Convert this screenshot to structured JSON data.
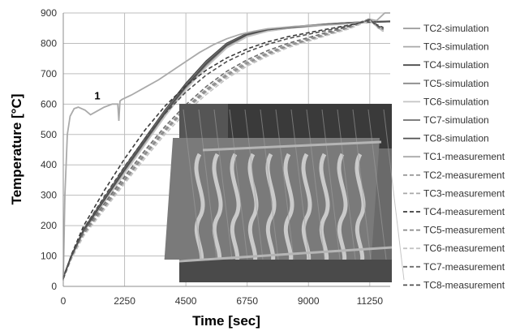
{
  "chart_data": {
    "type": "line",
    "title": "",
    "xlabel": "Time [sec]",
    "ylabel": "Temperature [°C]",
    "xlim": [
      0,
      12000
    ],
    "ylim": [
      0,
      900
    ],
    "xticks": [
      0,
      2250,
      4500,
      6750,
      9000,
      11250
    ],
    "yticks": [
      0,
      100,
      200,
      300,
      400,
      500,
      600,
      700,
      800,
      900
    ],
    "grid": true,
    "legend_position": "right",
    "annotations": [
      {
        "text": "1",
        "x": 1250,
        "y": 615
      }
    ],
    "series": [
      {
        "name": "TC2-simulation",
        "style": "solid",
        "color": "#9a9a9a",
        "x": [
          0,
          300,
          750,
          1500,
          2250,
          3000,
          3750,
          4500,
          5250,
          6000,
          6750,
          7500,
          8250,
          9000,
          9750,
          10500,
          11250,
          12000
        ],
        "y": [
          30,
          100,
          185,
          285,
          385,
          480,
          575,
          660,
          735,
          795,
          830,
          845,
          852,
          858,
          864,
          868,
          870,
          872
        ]
      },
      {
        "name": "TC3-simulation",
        "style": "solid",
        "color": "#a8a8a8",
        "x": [
          0,
          300,
          750,
          1500,
          2250,
          3000,
          3750,
          4500,
          5250,
          6000,
          6750,
          7500,
          8250,
          9000,
          9750,
          10500,
          11250,
          12000
        ],
        "y": [
          30,
          98,
          180,
          278,
          375,
          470,
          565,
          650,
          725,
          788,
          825,
          842,
          850,
          856,
          862,
          867,
          870,
          872
        ]
      },
      {
        "name": "TC4-simulation",
        "style": "solid",
        "color": "#4a4a4a",
        "x": [
          0,
          300,
          750,
          1500,
          2250,
          3000,
          3750,
          4500,
          5250,
          6000,
          6750,
          7500,
          8250,
          9000,
          9750,
          10500,
          11250,
          12000
        ],
        "y": [
          30,
          102,
          188,
          290,
          392,
          488,
          582,
          668,
          742,
          800,
          833,
          847,
          853,
          859,
          864,
          868,
          871,
          873
        ]
      },
      {
        "name": "TC5-simulation",
        "style": "solid",
        "color": "#8a8a8a",
        "x": [
          0,
          300,
          750,
          1500,
          2250,
          3000,
          3750,
          4500,
          5250,
          6000,
          6750,
          7500,
          8250,
          9000,
          9750,
          10500,
          11250,
          12000
        ],
        "y": [
          30,
          99,
          183,
          282,
          380,
          475,
          570,
          655,
          730,
          792,
          828,
          844,
          851,
          857,
          863,
          867,
          870,
          872
        ]
      },
      {
        "name": "TC6-simulation",
        "style": "solid",
        "color": "#c4c4c4",
        "x": [
          0,
          300,
          750,
          1500,
          2250,
          3000,
          3750,
          4500,
          5250,
          6000,
          6750,
          7500,
          8250,
          9000,
          9750,
          10500,
          11250,
          12000
        ],
        "y": [
          30,
          97,
          178,
          275,
          372,
          467,
          562,
          647,
          722,
          785,
          822,
          840,
          849,
          855,
          861,
          866,
          869,
          871
        ]
      },
      {
        "name": "TC7-simulation",
        "style": "solid",
        "color": "#6e6e6e",
        "x": [
          0,
          300,
          750,
          1500,
          2250,
          3000,
          3750,
          4500,
          5250,
          6000,
          6750,
          7500,
          8250,
          9000,
          9750,
          10500,
          11250,
          12000
        ],
        "y": [
          30,
          101,
          186,
          287,
          388,
          484,
          578,
          663,
          738,
          797,
          831,
          846,
          852,
          858,
          863,
          868,
          870,
          872
        ]
      },
      {
        "name": "TC8-simulation",
        "style": "solid",
        "color": "#505050",
        "x": [
          0,
          300,
          750,
          1500,
          2250,
          3000,
          3750,
          4500,
          5250,
          6000,
          6750,
          7500,
          8250,
          9000,
          9750,
          10500,
          11250,
          12000
        ],
        "y": [
          30,
          100,
          184,
          284,
          384,
          479,
          573,
          658,
          733,
          794,
          829,
          845,
          852,
          857,
          863,
          867,
          870,
          872
        ]
      },
      {
        "name": "TC1-measurement",
        "style": "solid",
        "color": "#aaaaaa",
        "x": [
          0,
          60,
          150,
          250,
          400,
          550,
          800,
          1000,
          1200,
          1500,
          1800,
          2000,
          2040,
          2080,
          2150,
          2500,
          3000,
          3500,
          4000,
          4500,
          5000,
          5500,
          6000,
          6500,
          7000,
          7500,
          8000,
          8500,
          9000,
          9500,
          10000,
          10500,
          11000,
          11200,
          11500,
          11800,
          12000
        ],
        "y": [
          20,
          300,
          500,
          560,
          585,
          590,
          580,
          565,
          575,
          590,
          600,
          600,
          545,
          610,
          615,
          630,
          655,
          680,
          710,
          740,
          770,
          795,
          815,
          830,
          840,
          848,
          852,
          856,
          858,
          860,
          862,
          865,
          870,
          880,
          875,
          900,
          900
        ]
      },
      {
        "name": "TC2-measurement",
        "style": "dashed",
        "color": "#9a9a9a",
        "x": [
          0,
          300,
          750,
          1500,
          2250,
          3000,
          3750,
          4500,
          5250,
          6000,
          6750,
          7500,
          8250,
          9000,
          9750,
          10500,
          11000,
          11250,
          11500,
          11750
        ],
        "y": [
          25,
          95,
          175,
          265,
          355,
          440,
          520,
          590,
          650,
          700,
          740,
          770,
          795,
          815,
          835,
          855,
          872,
          880,
          860,
          845
        ]
      },
      {
        "name": "TC3-measurement",
        "style": "dashed",
        "color": "#a8a8a8",
        "x": [
          0,
          300,
          750,
          1500,
          2250,
          3000,
          3750,
          4500,
          5250,
          6000,
          6750,
          7500,
          8250,
          9000,
          9750,
          10500,
          11000,
          11250,
          11500,
          11750
        ],
        "y": [
          25,
          92,
          170,
          258,
          345,
          430,
          510,
          580,
          640,
          690,
          730,
          762,
          790,
          810,
          830,
          850,
          868,
          876,
          858,
          842
        ]
      },
      {
        "name": "TC4-measurement",
        "style": "dashed",
        "color": "#3c3c3c",
        "x": [
          0,
          300,
          750,
          1500,
          2250,
          3000,
          3750,
          4500,
          5250,
          6000,
          6750,
          7500,
          8250,
          9000,
          9750,
          10500,
          11000,
          11250,
          11500,
          11750
        ],
        "y": [
          25,
          105,
          200,
          315,
          420,
          515,
          595,
          660,
          712,
          752,
          782,
          805,
          822,
          835,
          848,
          860,
          870,
          876,
          862,
          852
        ]
      },
      {
        "name": "TC5-measurement",
        "style": "dashed",
        "color": "#8a8a8a",
        "x": [
          0,
          300,
          750,
          1500,
          2250,
          3000,
          3750,
          4500,
          5250,
          6000,
          6750,
          7500,
          8250,
          9000,
          9750,
          10500,
          11000,
          11250,
          11500,
          11750
        ],
        "y": [
          25,
          93,
          172,
          262,
          350,
          435,
          515,
          585,
          645,
          695,
          735,
          766,
          792,
          812,
          832,
          852,
          870,
          878,
          855,
          840
        ]
      },
      {
        "name": "TC6-measurement",
        "style": "dashed",
        "color": "#c4c4c4",
        "x": [
          0,
          300,
          750,
          1500,
          2250,
          3000,
          3750,
          4500,
          5250,
          6000,
          6750,
          7500,
          8250,
          9000,
          9750,
          10500,
          11000,
          11250,
          11500,
          11750
        ],
        "y": [
          25,
          90,
          166,
          252,
          338,
          422,
          502,
          572,
          632,
          684,
          725,
          758,
          786,
          807,
          828,
          848,
          866,
          874,
          856,
          838
        ]
      },
      {
        "name": "TC7-measurement",
        "style": "dashed",
        "color": "#6e6e6e",
        "x": [
          0,
          300,
          750,
          1500,
          2250,
          3000,
          3750,
          4500,
          5250,
          6000,
          6750,
          7500,
          8250,
          9000,
          9750,
          10500,
          11000,
          11250,
          11500,
          11750
        ],
        "y": [
          25,
          97,
          180,
          272,
          362,
          448,
          528,
          598,
          658,
          708,
          746,
          776,
          800,
          819,
          838,
          856,
          873,
          879,
          859,
          846
        ]
      },
      {
        "name": "TC8-measurement",
        "style": "dashed",
        "color": "#505050",
        "x": [
          0,
          300,
          750,
          1500,
          2250,
          3000,
          3750,
          4500,
          5250,
          6000,
          6750,
          7500,
          8250,
          9000,
          9750,
          10500,
          11000,
          11250,
          11500,
          11750
        ],
        "y": [
          25,
          100,
          190,
          295,
          395,
          488,
          570,
          640,
          696,
          740,
          772,
          797,
          816,
          830,
          844,
          858,
          870,
          877,
          860,
          848
        ]
      }
    ]
  }
}
